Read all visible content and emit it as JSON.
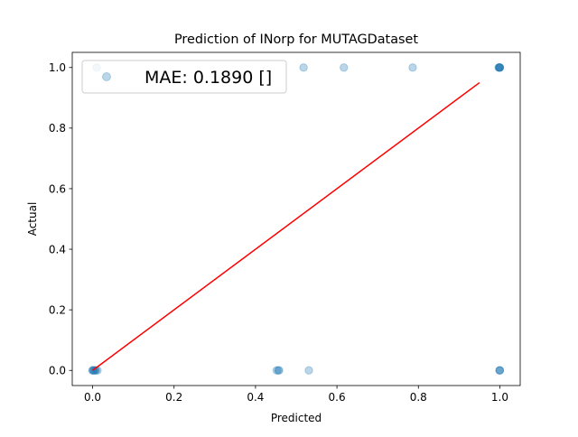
{
  "chart_data": {
    "type": "scatter",
    "title": "Prediction of INorp for MUTAGDataset",
    "xlabel": "Predicted",
    "ylabel": "Actual",
    "xlim": [
      -0.05,
      1.05
    ],
    "ylim": [
      -0.05,
      1.05
    ],
    "xticks": [
      0.0,
      0.2,
      0.4,
      0.6,
      0.8,
      1.0
    ],
    "yticks": [
      0.0,
      0.2,
      0.4,
      0.6,
      0.8,
      1.0
    ],
    "xtick_labels": [
      "0.0",
      "0.2",
      "0.4",
      "0.6",
      "0.8",
      "1.0"
    ],
    "ytick_labels": [
      "0.0",
      "0.2",
      "0.4",
      "0.6",
      "0.8",
      "1.0"
    ],
    "grid": false,
    "legend": {
      "position": "top-left",
      "entries": [
        "MAE: 0.1890 []"
      ]
    },
    "colors": {
      "points": "#1f77b4",
      "reference_line": "#ff0000",
      "axes": "#000000"
    },
    "series": [
      {
        "kind": "scatter",
        "points": [
          {
            "x": 0.0,
            "y": 0.0
          },
          {
            "x": 0.002,
            "y": 0.0
          },
          {
            "x": 0.004,
            "y": 0.0
          },
          {
            "x": 0.006,
            "y": 0.0
          },
          {
            "x": 0.0,
            "y": 0.0
          },
          {
            "x": 0.008,
            "y": 0.0
          },
          {
            "x": 0.012,
            "y": 0.0
          },
          {
            "x": 0.01,
            "y": 1.0
          },
          {
            "x": 0.452,
            "y": 0.0
          },
          {
            "x": 0.456,
            "y": 0.0
          },
          {
            "x": 0.458,
            "y": 0.0
          },
          {
            "x": 0.531,
            "y": 0.0
          },
          {
            "x": 0.518,
            "y": 1.0
          },
          {
            "x": 0.617,
            "y": 1.0
          },
          {
            "x": 0.786,
            "y": 1.0
          },
          {
            "x": 0.998,
            "y": 1.0
          },
          {
            "x": 1.0,
            "y": 1.0
          },
          {
            "x": 0.999,
            "y": 1.0
          },
          {
            "x": 1.0,
            "y": 1.0
          },
          {
            "x": 0.997,
            "y": 1.0
          },
          {
            "x": 1.0,
            "y": 1.0
          },
          {
            "x": 1.0,
            "y": 0.0
          },
          {
            "x": 0.999,
            "y": 0.0
          },
          {
            "x": 1.0,
            "y": 0.0
          }
        ]
      },
      {
        "kind": "line",
        "points": [
          {
            "x": 0.0,
            "y": 0.0
          },
          {
            "x": 0.95,
            "y": 0.95
          }
        ]
      }
    ]
  }
}
